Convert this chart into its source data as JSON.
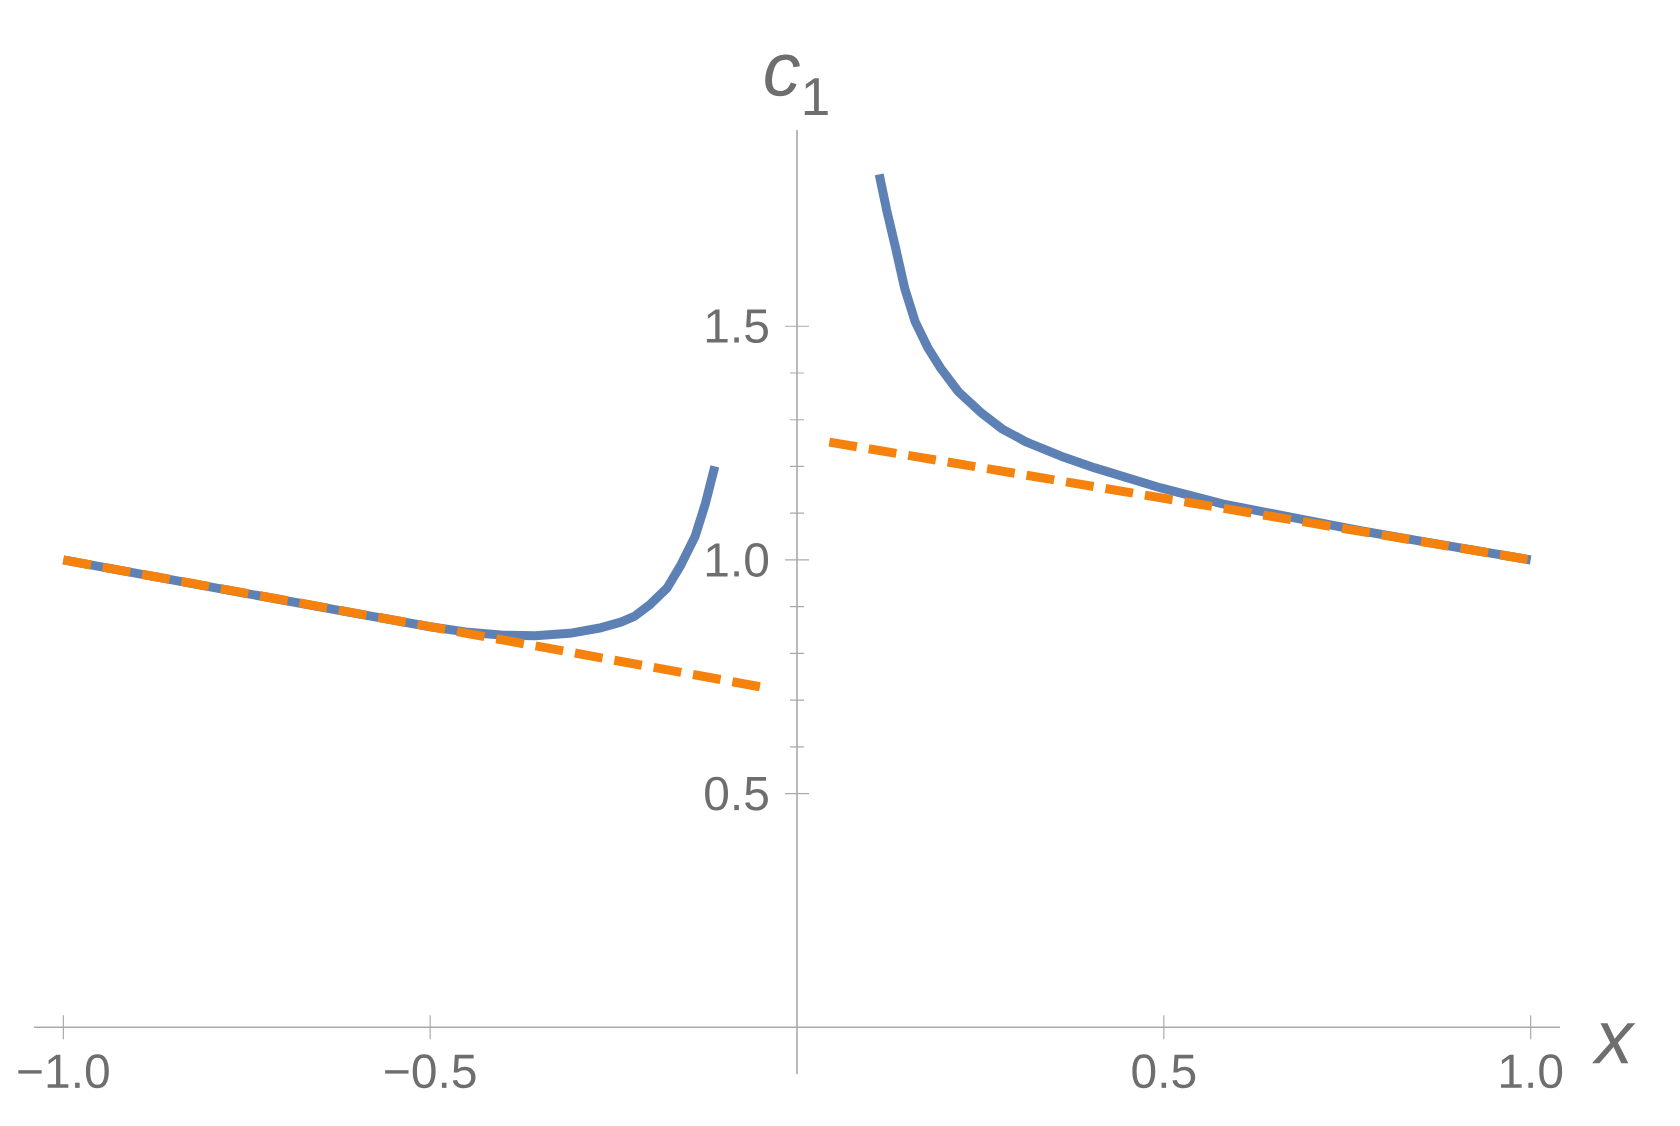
{
  "chart_data": {
    "type": "line",
    "xlabel": "*x*",
    "ylabel": "*c*$_{1}$",
    "xlim": [
      -1.04,
      1.04
    ],
    "ylim": [
      -0.1,
      1.92
    ],
    "xticks": [
      {
        "value": -1.0,
        "label": "−1.0"
      },
      {
        "value": -0.5,
        "label": "−0.5"
      },
      {
        "value": 0.5,
        "label": "0.5"
      },
      {
        "value": 1.0,
        "label": "1.0"
      }
    ],
    "yticks": [
      {
        "value": 0.5,
        "label": "0.5"
      },
      {
        "value": 1.0,
        "label": "1.0"
      },
      {
        "value": 1.5,
        "label": "1.5"
      }
    ],
    "marker": "none",
    "series": [
      {
        "color": "#5e81b5",
        "line_style": "solid",
        "x": [
          -1.0,
          -0.75,
          -0.6,
          -0.5,
          -0.452,
          -0.4,
          -0.357,
          -0.31,
          -0.267,
          -0.24,
          -0.221,
          -0.2,
          -0.177,
          -0.158,
          -0.139,
          -0.125,
          -0.112
        ],
        "values": [
          1.0,
          0.928,
          0.885,
          0.857,
          0.846,
          0.839,
          0.838,
          0.843,
          0.855,
          0.867,
          0.88,
          0.905,
          0.94,
          0.99,
          1.05,
          1.12,
          1.2
        ]
      },
      {
        "color": "#5e81b5",
        "line_style": "solid",
        "x": [
          0.112,
          0.122,
          0.134,
          0.147,
          0.161,
          0.178,
          0.196,
          0.22,
          0.251,
          0.28,
          0.313,
          0.36,
          0.406,
          0.496,
          0.58,
          0.678,
          0.77,
          0.858,
          1.0
        ],
        "values": [
          1.825,
          1.75,
          1.67,
          1.58,
          1.51,
          1.455,
          1.41,
          1.36,
          1.315,
          1.28,
          1.252,
          1.222,
          1.197,
          1.154,
          1.12,
          1.09,
          1.062,
          1.038,
          1.0
        ]
      },
      {
        "color": "#f5820d",
        "line_style": "dashed",
        "x": [
          -1.0,
          -0.041
        ],
        "values": [
          1.0,
          0.726
        ]
      },
      {
        "color": "#f5820d",
        "line_style": "dashed",
        "x": [
          0.044,
          1.0
        ],
        "values": [
          1.252,
          1.0
        ]
      }
    ]
  }
}
